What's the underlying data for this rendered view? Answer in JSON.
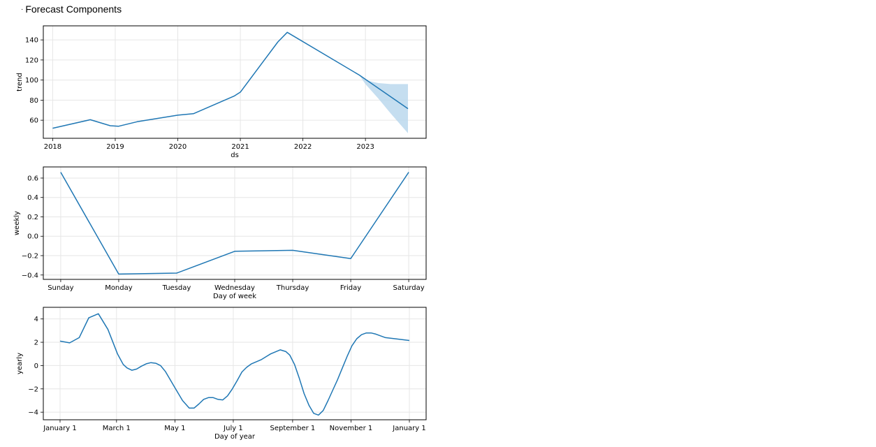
{
  "header": {
    "bullet": "·",
    "title": "Forecast Components"
  },
  "colors": {
    "line": "#1f77b4",
    "band": "#b6d6ec",
    "grid": "#e6e6e6",
    "frame": "#000000"
  },
  "chart_data": [
    {
      "type": "line",
      "xlabel": "ds",
      "ylabel": "trend",
      "x_ticks": [
        "2018",
        "2019",
        "2020",
        "2021",
        "2022",
        "2023"
      ],
      "y_ticks": [
        60,
        80,
        100,
        120,
        140
      ],
      "xlim": [
        2017.85,
        2023.97
      ],
      "ylim": [
        42,
        154
      ],
      "grid": true,
      "series": [
        {
          "x": [
            2018.0,
            2018.6,
            2018.92,
            2019.05,
            2019.35,
            2020.0,
            2020.25,
            2020.9,
            2021.0,
            2021.6,
            2021.75,
            2022.9,
            2023.68
          ],
          "values": [
            52,
            60.5,
            54.5,
            54,
            58.5,
            65,
            66.5,
            84,
            88,
            138,
            147.5,
            105,
            71.5
          ]
        }
      ],
      "uncertainty_band": {
        "x": [
          2022.9,
          2023.0,
          2023.2,
          2023.4,
          2023.68
        ],
        "upper": [
          105,
          100,
          97,
          96,
          96
        ],
        "lower": [
          105,
          96,
          82,
          67,
          47
        ]
      }
    },
    {
      "type": "line",
      "xlabel": "Day of week",
      "ylabel": "weekly",
      "categories": [
        "Sunday",
        "Monday",
        "Tuesday",
        "Wednesday",
        "Thursday",
        "Friday",
        "Saturday"
      ],
      "y_ticks": [
        "0.6",
        "0.4",
        "0.2",
        "0.0",
        "−0.2",
        "−0.4"
      ],
      "y_tick_values": [
        0.6,
        0.4,
        0.2,
        0.0,
        -0.2,
        -0.4
      ],
      "ylim": [
        -0.445,
        0.715
      ],
      "grid": true,
      "series": [
        {
          "values": [
            0.66,
            -0.39,
            -0.38,
            -0.155,
            -0.145,
            -0.23,
            0.66
          ]
        }
      ]
    },
    {
      "type": "line",
      "xlabel": "Day of year",
      "ylabel": "yearly",
      "x_ticks": [
        "January 1",
        "March 1",
        "May 1",
        "July 1",
        "September 1",
        "November 1",
        "January 1"
      ],
      "x_tick_values": [
        0,
        59,
        120,
        181,
        243,
        304,
        365
      ],
      "y_ticks": [
        "4",
        "2",
        "0",
        "−2",
        "−4"
      ],
      "y_tick_values": [
        4,
        2,
        0,
        -2,
        -4
      ],
      "xlim": [
        -17.5,
        382.5
      ],
      "ylim": [
        -4.65,
        5.0
      ],
      "grid": true,
      "series": [
        {
          "x": [
            0,
            10,
            20,
            30,
            40,
            50,
            60,
            66,
            70,
            75,
            80,
            85,
            90,
            95,
            100,
            105,
            110,
            120,
            128,
            135,
            140,
            145,
            150,
            155,
            160,
            165,
            170,
            175,
            180,
            185,
            190,
            195,
            200,
            210,
            220,
            230,
            236,
            240,
            245,
            250,
            255,
            260,
            265,
            270,
            275,
            280,
            285,
            290,
            295,
            300,
            305,
            310,
            315,
            320,
            325,
            330,
            335,
            340,
            350,
            365
          ],
          "values": [
            2.1,
            1.95,
            2.4,
            4.1,
            4.45,
            3.1,
            1.0,
            0.1,
            -0.2,
            -0.4,
            -0.3,
            -0.05,
            0.15,
            0.25,
            0.2,
            0.0,
            -0.5,
            -1.9,
            -3.0,
            -3.65,
            -3.65,
            -3.3,
            -2.9,
            -2.75,
            -2.75,
            -2.9,
            -2.95,
            -2.6,
            -2.0,
            -1.3,
            -0.55,
            -0.15,
            0.15,
            0.5,
            1.0,
            1.35,
            1.2,
            0.9,
            0.1,
            -1.1,
            -2.4,
            -3.4,
            -4.1,
            -4.25,
            -3.85,
            -3.0,
            -2.1,
            -1.2,
            -0.2,
            0.8,
            1.7,
            2.3,
            2.65,
            2.8,
            2.8,
            2.7,
            2.55,
            2.4,
            2.3,
            2.15
          ]
        }
      ]
    }
  ]
}
